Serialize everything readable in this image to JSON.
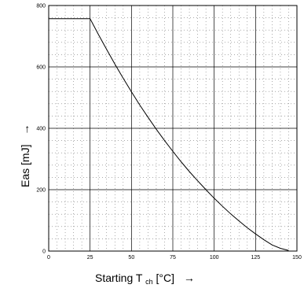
{
  "chart_data": {
    "type": "line",
    "title": "",
    "xlabel": "Starting T",
    "xlabel_sub": "ch",
    "xlabel_unit": " [°C]",
    "ylabel": "Eas [mJ]",
    "arrow": "→",
    "xlim": [
      0,
      150
    ],
    "ylim": [
      0,
      800
    ],
    "x_ticks": [
      0,
      25,
      50,
      75,
      100,
      125,
      150
    ],
    "y_ticks": [
      0,
      200,
      400,
      600,
      800
    ],
    "x_minor_step": 5,
    "y_minor_step": 40,
    "grid": true,
    "series": [
      {
        "x": [
          0,
          25,
          30,
          35,
          40,
          45,
          50,
          55,
          60,
          65,
          70,
          75,
          80,
          85,
          90,
          95,
          100,
          105,
          110,
          115,
          120,
          125,
          130,
          135,
          140,
          145
        ],
        "y": [
          757,
          757,
          706,
          657,
          609,
          563,
          519,
          476,
          436,
          397,
          360,
          325,
          291,
          259,
          229,
          200,
          172,
          146,
          121,
          98,
          76,
          56,
          37,
          20,
          9,
          2
        ],
        "color": "#000000"
      }
    ]
  }
}
